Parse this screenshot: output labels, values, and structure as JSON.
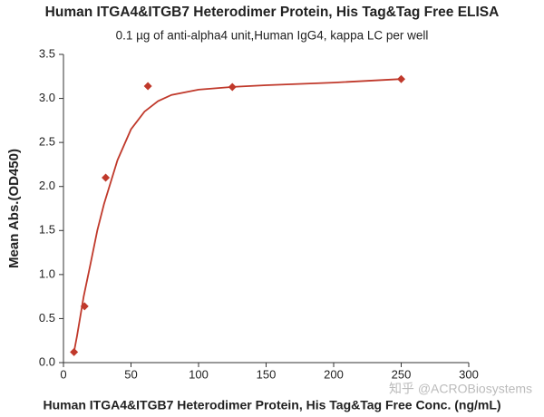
{
  "chart_data": {
    "type": "scatter",
    "title": "Human ITGA4&ITGB7 Heterodimer Protein, His Tag&Tag Free ELISA",
    "subtitle": "0.1 µg of anti-alpha4 unit,Human IgG4, kappa LC per well",
    "x_label": "Human ITGA4&ITGB7 Heterodimer Protein, His Tag&Tag Free Conc. (ng/mL)",
    "y_label": "Mean Abs.(OD450)",
    "watermark": "知乎 @ACROBiosystems",
    "color": "#c0392b",
    "x": [
      7.8,
      15.6,
      31.25,
      62.5,
      125,
      250
    ],
    "values": [
      0.12,
      0.64,
      2.1,
      3.14,
      3.13,
      3.22
    ],
    "curve": {
      "x": [
        7.8,
        10,
        15,
        20,
        25,
        30,
        40,
        50,
        60,
        70,
        80,
        100,
        125,
        150,
        200,
        250
      ],
      "values": [
        0.12,
        0.3,
        0.75,
        1.12,
        1.5,
        1.8,
        2.3,
        2.65,
        2.85,
        2.97,
        3.04,
        3.1,
        3.13,
        3.15,
        3.18,
        3.22
      ]
    },
    "xlim": [
      0,
      300
    ],
    "ylim": [
      0,
      3.5
    ],
    "xticks": [
      0,
      50,
      100,
      150,
      200,
      250,
      300
    ],
    "yticks": [
      {
        "value": 0,
        "label": "0.0"
      },
      0.5,
      {
        "value": 1,
        "label": "1.0"
      },
      1.5,
      {
        "value": 2,
        "label": "2.0"
      },
      2.5,
      {
        "value": 3,
        "label": "3.0"
      },
      3.5
    ]
  }
}
